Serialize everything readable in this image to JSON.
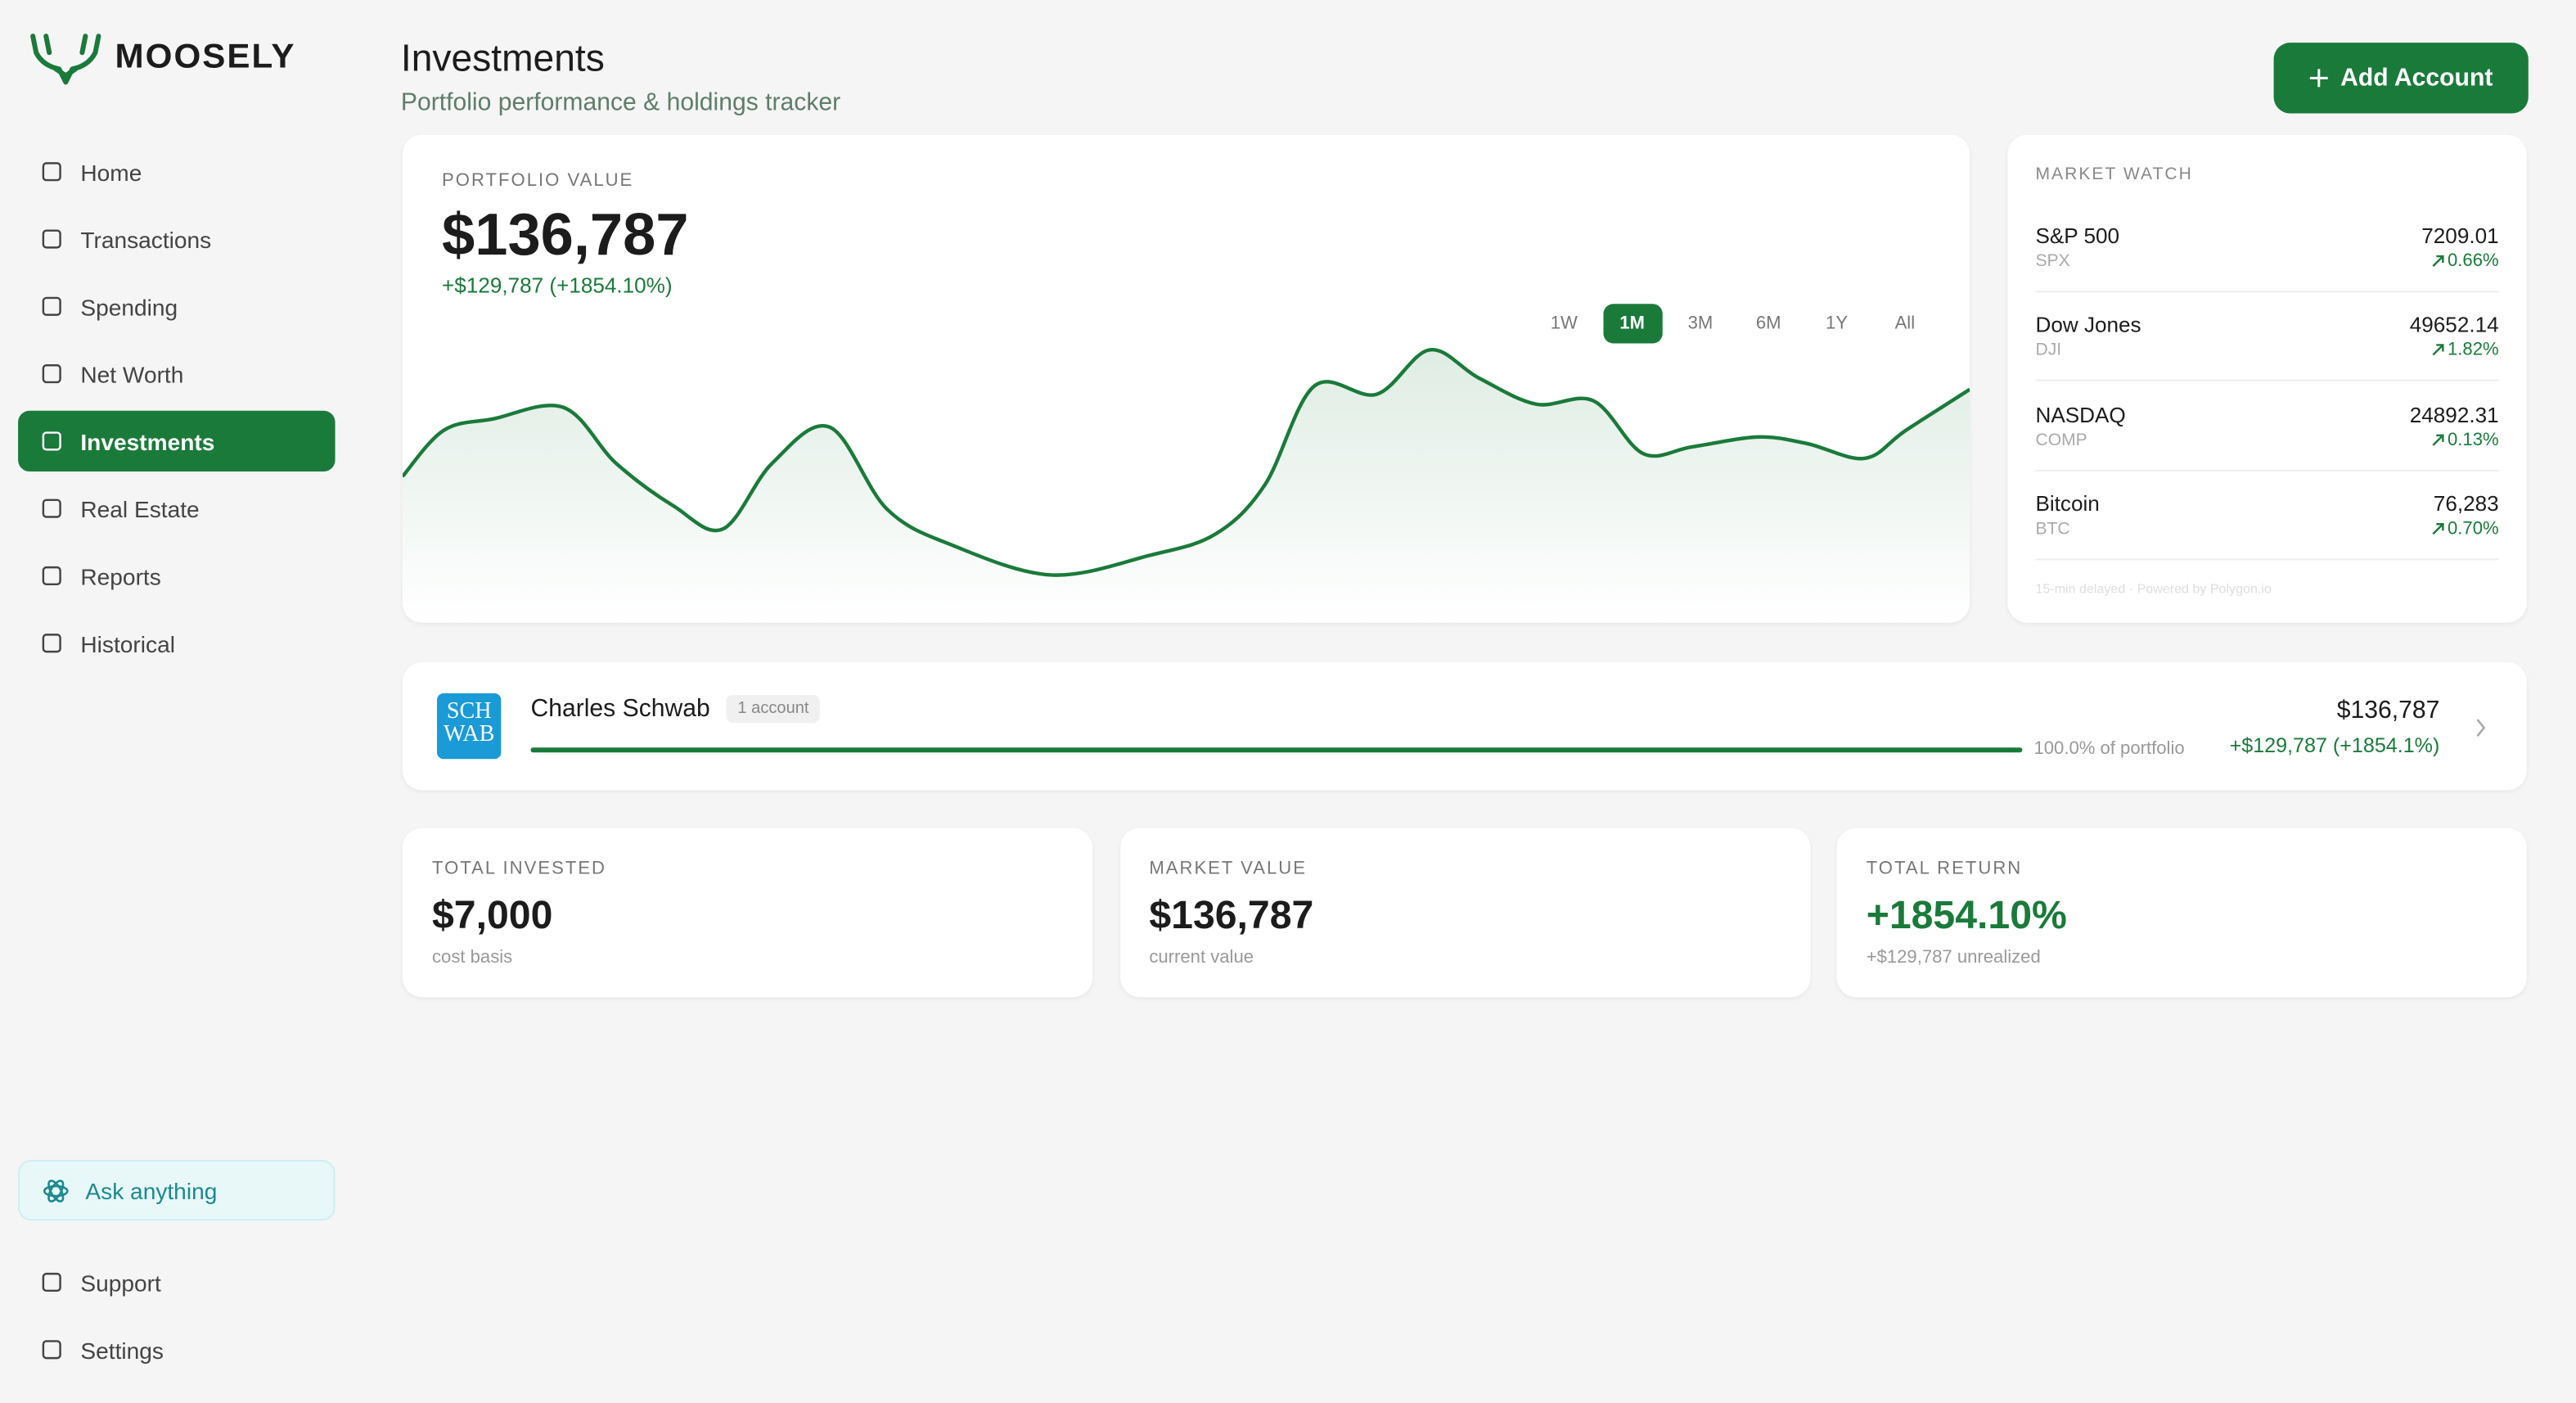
{
  "sidebar": {
    "brand": "MOOSELY",
    "nav": [
      "Home",
      "Transactions",
      "Spending",
      "Net Worth",
      "Investments",
      "Real Estate",
      "Reports",
      "Historical"
    ],
    "active": "Investments",
    "ask": "Ask anything",
    "footer_nav": [
      "Support",
      "Settings"
    ]
  },
  "header": {
    "title": "Investments",
    "subtitle": "Portfolio performance & holdings tracker",
    "button": "Add Account"
  },
  "portfolio": {
    "label": "PORTFOLIO VALUE",
    "value": "$136,787",
    "change": "+$129,787 (+1854.10%)",
    "ranges": [
      "1W",
      "1M",
      "3M",
      "6M",
      "1Y",
      "All"
    ],
    "active_range": "1M"
  },
  "market_watch": {
    "title": "MARKET WATCH",
    "items": [
      {
        "name": "S&P 500",
        "symbol": "SPX",
        "price": "7209.01",
        "change": "0.66%"
      },
      {
        "name": "Dow Jones",
        "symbol": "DJI",
        "price": "49652.14",
        "change": "1.82%"
      },
      {
        "name": "NASDAQ",
        "symbol": "COMP",
        "price": "24892.31",
        "change": "0.13%"
      },
      {
        "name": "Bitcoin",
        "symbol": "BTC",
        "price": "76,283",
        "change": "0.70%"
      }
    ],
    "footnote": "15-min delayed · Powered by Polygon.io"
  },
  "account": {
    "logo": [
      "SCH",
      "WAB"
    ],
    "name": "Charles Schwab",
    "badge": "1 account",
    "share": "100.0% of portfolio",
    "value": "$136,787",
    "change": "+$129,787 (+1854.1%)"
  },
  "stats": [
    {
      "label": "TOTAL INVESTED",
      "value": "$7,000",
      "note": "cost basis"
    },
    {
      "label": "MARKET VALUE",
      "value": "$136,787",
      "note": "current value"
    },
    {
      "label": "TOTAL RETURN",
      "value": "+1854.10%",
      "note": "+$129,787 unrealized"
    }
  ]
}
